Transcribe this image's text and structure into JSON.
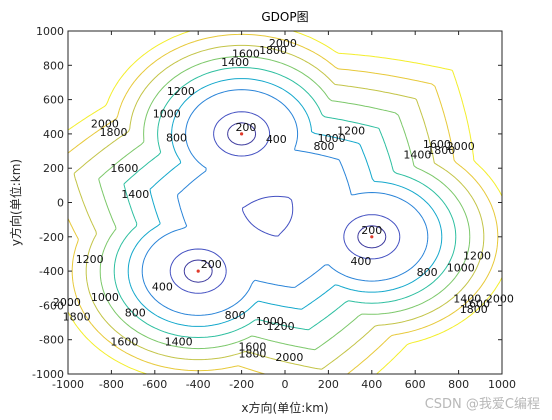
{
  "chart_data": {
    "type": "contour",
    "title": "GDOP图",
    "xlabel": "x方向(单位:km)",
    "ylabel": "y方向(单位:km)",
    "xlim": [
      -1000,
      1000
    ],
    "ylim": [
      -1000,
      1000
    ],
    "xticks": [
      -1000,
      -800,
      -600,
      -400,
      -200,
      0,
      200,
      400,
      600,
      800,
      1000
    ],
    "yticks": [
      -1000,
      -800,
      -600,
      -400,
      -200,
      0,
      200,
      400,
      600,
      800,
      1000
    ],
    "stations": [
      {
        "x": -200,
        "y": 400
      },
      {
        "x": -400,
        "y": -400
      },
      {
        "x": 400,
        "y": -200
      }
    ],
    "levels": [
      200,
      400,
      800,
      1000,
      1200,
      1400,
      1600,
      1800,
      2000
    ],
    "level_colors": {
      "200": "#3d3a9e",
      "400": "#4451c2",
      "800": "#2a84d8",
      "1000": "#14a8cc",
      "1200": "#2ebfa0",
      "1400": "#7cc86a",
      "1600": "#c3c447",
      "1800": "#e7c93a",
      "2000": "#f3ee2b"
    },
    "contour_labels": [
      {
        "text": "2000",
        "x": -10,
        "y": 930
      },
      {
        "text": "1800",
        "x": -55,
        "y": 890
      },
      {
        "text": "1600",
        "x": -180,
        "y": 870
      },
      {
        "text": "1400",
        "x": -230,
        "y": 820
      },
      {
        "text": "1200",
        "x": -480,
        "y": 650
      },
      {
        "text": "1000",
        "x": -545,
        "y": 520
      },
      {
        "text": "800",
        "x": -500,
        "y": 380
      },
      {
        "text": "2000",
        "x": -830,
        "y": 460
      },
      {
        "text": "1800",
        "x": -790,
        "y": 410
      },
      {
        "text": "1600",
        "x": -740,
        "y": 200
      },
      {
        "text": "1400",
        "x": -690,
        "y": 50
      },
      {
        "text": "200",
        "x": -180,
        "y": 440
      },
      {
        "text": "400",
        "x": -40,
        "y": 370
      },
      {
        "text": "1200",
        "x": 305,
        "y": 420
      },
      {
        "text": "1000",
        "x": 215,
        "y": 375
      },
      {
        "text": "800",
        "x": 180,
        "y": 330
      },
      {
        "text": "1400",
        "x": 610,
        "y": 280
      },
      {
        "text": "1600",
        "x": 700,
        "y": 340
      },
      {
        "text": "1800",
        "x": 720,
        "y": 305
      },
      {
        "text": "2000",
        "x": 810,
        "y": 330
      },
      {
        "text": "200",
        "x": 400,
        "y": -160
      },
      {
        "text": "400",
        "x": 350,
        "y": -340
      },
      {
        "text": "800",
        "x": 655,
        "y": -405
      },
      {
        "text": "1000",
        "x": 810,
        "y": -380
      },
      {
        "text": "1200",
        "x": 885,
        "y": -310
      },
      {
        "text": "1400",
        "x": 840,
        "y": -560
      },
      {
        "text": "1600",
        "x": 880,
        "y": -590
      },
      {
        "text": "1800",
        "x": 870,
        "y": -620
      },
      {
        "text": "2000",
        "x": 990,
        "y": -560
      },
      {
        "text": "200",
        "x": -340,
        "y": -360
      },
      {
        "text": "400",
        "x": -565,
        "y": -490
      },
      {
        "text": "1200",
        "x": -900,
        "y": -330
      },
      {
        "text": "1000",
        "x": -830,
        "y": -550
      },
      {
        "text": "800",
        "x": -690,
        "y": -640
      },
      {
        "text": "800",
        "x": -230,
        "y": -655
      },
      {
        "text": "1000",
        "x": -70,
        "y": -690
      },
      {
        "text": "1200",
        "x": -20,
        "y": -720
      },
      {
        "text": "2000",
        "x": -1005,
        "y": -580
      },
      {
        "text": "1800",
        "x": -960,
        "y": -665
      },
      {
        "text": "1600",
        "x": -740,
        "y": -810
      },
      {
        "text": "1400",
        "x": -490,
        "y": -810
      },
      {
        "text": "1600",
        "x": -150,
        "y": -840
      },
      {
        "text": "1800",
        "x": -150,
        "y": -880
      },
      {
        "text": "2000",
        "x": 20,
        "y": -900
      }
    ],
    "grid": false,
    "legend": "none"
  },
  "watermark": "CSDN @我爱C编程"
}
